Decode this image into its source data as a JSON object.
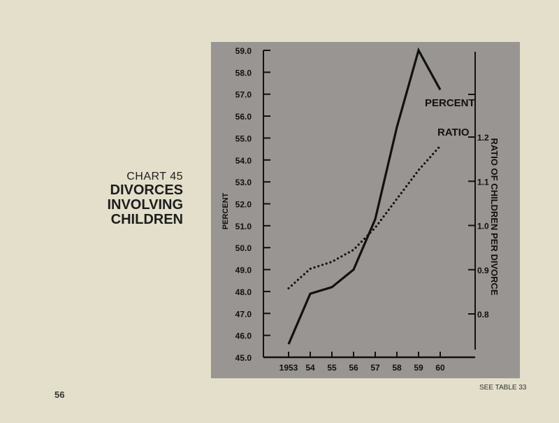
{
  "page": {
    "chart_number": "CHART 45",
    "title_lines": [
      "DIVORCES",
      "INVOLVING",
      "CHILDREN"
    ],
    "page_number": "56",
    "source_note": "SEE TABLE 33"
  },
  "colors": {
    "page_background": "#e3dfcb",
    "panel_background": "#989592",
    "ink": "#111111"
  },
  "chart_data": {
    "type": "line",
    "x": [
      1953,
      1954,
      1955,
      1956,
      1957,
      1958,
      1959,
      1960
    ],
    "x_tick_labels": [
      "1953",
      "54",
      "55",
      "56",
      "57",
      "58",
      "59",
      "60"
    ],
    "ylabel": "PERCENT",
    "y2label": "RATIO OF CHILDREN PER DIVORCE",
    "ylim": [
      45.0,
      59.0
    ],
    "y_ticks": [
      "45.0",
      "46.0",
      "47.0",
      "48.0",
      "49.0",
      "50.0",
      "51.0",
      "52.0",
      "53.0",
      "54.0",
      "55.0",
      "56.0",
      "57.0",
      "58.0",
      "59.0"
    ],
    "y2lim": [
      0.8,
      1.2
    ],
    "y2_ticks": [
      "0.8",
      "0.9",
      "1.0",
      "1.1",
      "1.2"
    ],
    "grid": false,
    "series": [
      {
        "name": "PERCENT",
        "axis": "left",
        "style": "solid",
        "values": [
          45.6,
          47.9,
          48.2,
          49.0,
          51.3,
          55.5,
          59.0,
          57.2
        ]
      },
      {
        "name": "RATIO",
        "axis": "right",
        "style": "dotted",
        "values": [
          0.858,
          0.902,
          0.918,
          0.945,
          0.995,
          1.06,
          1.125,
          1.18
        ]
      }
    ]
  }
}
